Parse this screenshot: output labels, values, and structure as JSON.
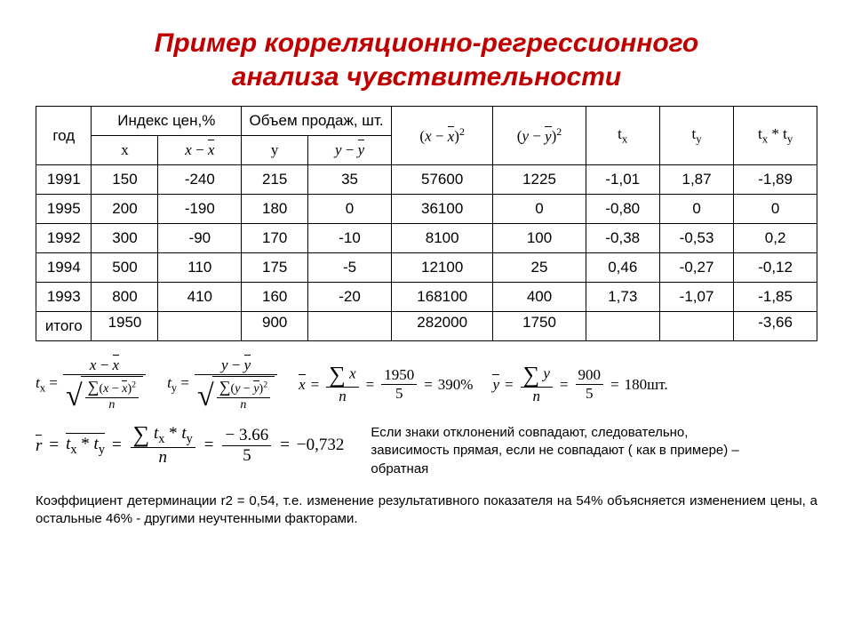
{
  "title_line1": "Пример корреляционно-регрессионного",
  "title_line2": "анализа чувствительности",
  "headers": {
    "year": "год",
    "index": "Индекс цен,%",
    "sales": "Объем продаж, шт.",
    "x": "x",
    "y": "y"
  },
  "rows": [
    {
      "year": "1991",
      "x": "150",
      "xd": "-240",
      "y": "215",
      "yd": "35",
      "xx": "57600",
      "yy": "1225",
      "tx": "-1,01",
      "ty": "1,87",
      "txty": "-1,89"
    },
    {
      "year": "1995",
      "x": "200",
      "xd": "-190",
      "y": "180",
      "yd": "0",
      "xx": "36100",
      "yy": "0",
      "tx": "-0,80",
      "ty": "0",
      "txty": "0"
    },
    {
      "year": "1992",
      "x": "300",
      "xd": "-90",
      "y": "170",
      "yd": "-10",
      "xx": "8100",
      "yy": "100",
      "tx": "-0,38",
      "ty": "-0,53",
      "txty": "0,2"
    },
    {
      "year": "1994",
      "x": "500",
      "xd": "110",
      "y": "175",
      "yd": "-5",
      "xx": "12100",
      "yy": "25",
      "tx": "0,46",
      "ty": "-0,27",
      "txty": "-0,12"
    },
    {
      "year": "1993",
      "x": "800",
      "xd": "410",
      "y": "160",
      "yd": "-20",
      "xx": "168100",
      "yy": "400",
      "tx": "1,73",
      "ty": "-1,07",
      "txty": "-1,85"
    }
  ],
  "totals": {
    "label": "итого",
    "sum_x": "1950",
    "sum_y": "900",
    "sum_xx": "282000",
    "sum_yy": "1750",
    "sum_txty": "-3,66"
  },
  "mean": {
    "x_num": "1950",
    "x_den": "5",
    "x_res": "390%",
    "y_num": "900",
    "y_den": "5",
    "y_res": "180шт."
  },
  "r": {
    "num": "− 3.66",
    "den": "5",
    "res": "−0,732"
  },
  "note_text": "Если знаки отклонений совпадают, следовательно, зависимость прямая, если не совпадают ( как в примере) – обратная",
  "footer_text": "Коэффициент детерминации r2   = 0,54, т.е. изменение результативного показателя на 54% объясняется изменением цены, а остальные 46% - другими неучтенными факторами."
}
